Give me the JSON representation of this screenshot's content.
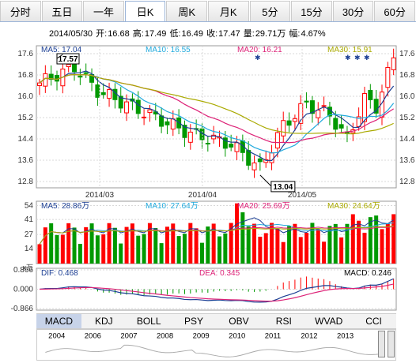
{
  "tabs": [
    "分时",
    "五日",
    "一年",
    "日K",
    "周K",
    "月K",
    "5分",
    "15分",
    "30分",
    "60分"
  ],
  "active_tab": 3,
  "quote": {
    "date": "2014/05/30",
    "open_label": "开:",
    "open": "16.68",
    "high_label": "高:",
    "high": "17.49",
    "low_label": "低:",
    "low": "16.49",
    "close_label": "收:",
    "close": "17.47",
    "volume_label": "量:",
    "volume": "29.71万",
    "change_label": "幅:",
    "change": "4.67%"
  },
  "ma_legend": {
    "ma5": "MA5: 17.04",
    "ma10": "MA10: 16.55",
    "ma20": "MA20: 16.21",
    "ma30": "MA30: 15.91"
  },
  "price_axis": [
    "17.6",
    "16.8",
    "16.0",
    "15.2",
    "14.4",
    "13.6",
    "12.8"
  ],
  "date_labels": [
    "2014/03",
    "2014/04",
    "2014/05"
  ],
  "high_marker": "17.57",
  "low_marker": "13.04",
  "vol_legend": {
    "ma5": "MA5: 28.86万",
    "ma10": "MA10: 27.64万",
    "ma20": "MA20: 25.69万",
    "ma30": "MA30: 24.64万"
  },
  "vol_axis": [
    "54",
    "41",
    "27",
    "14"
  ],
  "vol_unit": "x万",
  "macd_legend": {
    "dif": "DIF: 0.468",
    "dea": "DEA: 0.345",
    "macd": "MACD: 0.246"
  },
  "macd_axis": [
    "0.866",
    "0.000",
    "-0.866"
  ],
  "indicator_tabs": [
    "MACD",
    "KDJ",
    "BOLL",
    "PSY",
    "OBV",
    "RSI",
    "WVAD",
    "CCI"
  ],
  "active_indicator": 0,
  "timeline_years": [
    "2004",
    "2006",
    "2007",
    "2008",
    "2009",
    "2010",
    "2011",
    "2012",
    "2013"
  ],
  "colors": {
    "up": "#ff0000",
    "down": "#009900",
    "ma5": "#1c3f94",
    "ma10": "#22aadd",
    "ma20": "#dd2277",
    "ma30": "#aaaa00",
    "grid": "#d8d8d8"
  }
}
